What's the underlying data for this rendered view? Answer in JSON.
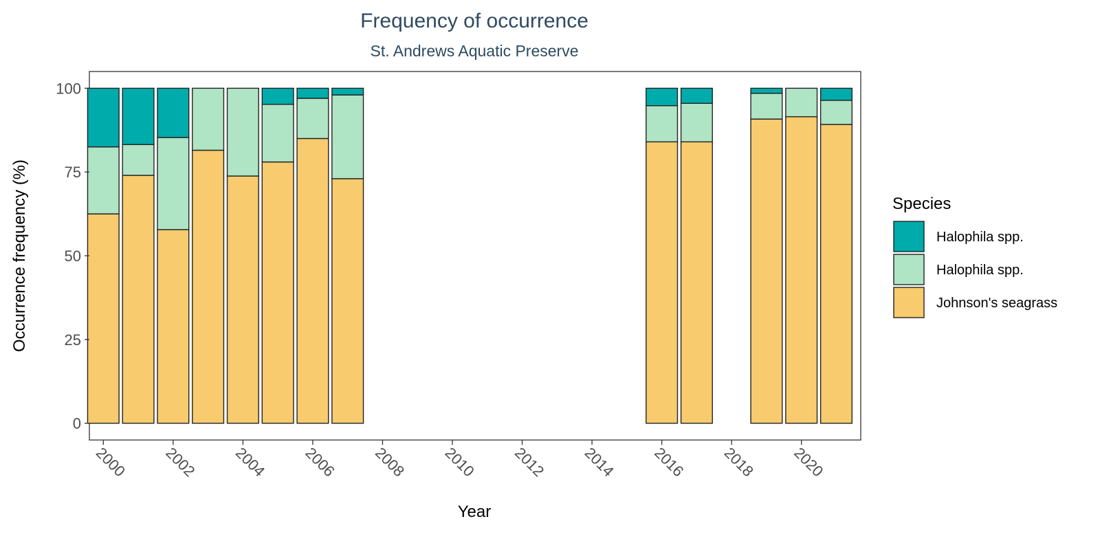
{
  "chart_data": {
    "type": "bar",
    "stacked": true,
    "title": "Frequency of occurrence",
    "subtitle": "St. Andrews Aquatic Preserve",
    "xlabel": "Year",
    "ylabel": "Occurrence frequency (%)",
    "xlim": [
      1999.6,
      2021.7
    ],
    "ylim": [
      -5,
      105
    ],
    "x_ticks": [
      2000,
      2002,
      2004,
      2006,
      2008,
      2010,
      2012,
      2014,
      2016,
      2018,
      2020
    ],
    "y_ticks": [
      0,
      25,
      50,
      75,
      100
    ],
    "grid": false,
    "legend": {
      "title": "Species",
      "position": "right"
    },
    "x": [
      2000,
      2001,
      2002,
      2003,
      2004,
      2005,
      2006,
      2007,
      2016,
      2017,
      2019,
      2020,
      2021
    ],
    "series": [
      {
        "name": "Johnson's seagrass",
        "color": "#F7CB6E",
        "values": [
          62.5,
          74,
          57.8,
          81.5,
          73.8,
          78,
          85,
          73,
          84,
          84,
          90.8,
          91.5,
          89.2
        ]
      },
      {
        "name": "Halophila spp.",
        "color": "#AFE4C4",
        "values": [
          20,
          9.2,
          27.5,
          18.5,
          26.2,
          17.2,
          12,
          25,
          10.8,
          11.5,
          7.7,
          8.5,
          7.2
        ]
      },
      {
        "name": "Halophila spp.",
        "color": "#00ABAB",
        "values": [
          17.5,
          16.8,
          14.7,
          0,
          0,
          4.8,
          3,
          2,
          5.2,
          4.5,
          1.5,
          0,
          3.6
        ]
      }
    ]
  }
}
